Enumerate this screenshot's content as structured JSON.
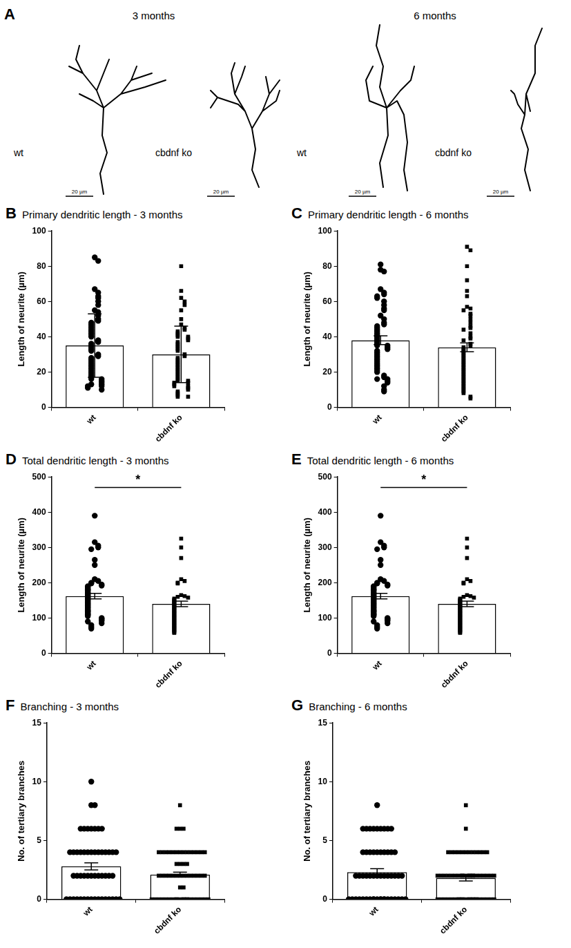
{
  "panel_a": {
    "letter": "A",
    "groups": [
      {
        "title": "3 months",
        "cells": [
          {
            "label": "wt",
            "scale_bar": "20 µm"
          },
          {
            "label": "cbdnf ko",
            "scale_bar": "20 µm"
          }
        ]
      },
      {
        "title": "6 months",
        "cells": [
          {
            "label": "wt",
            "scale_bar": "20 µm"
          },
          {
            "label": "cbdnf ko",
            "scale_bar": "20 µm"
          }
        ]
      }
    ]
  },
  "chart_data": [
    {
      "type": "bar",
      "panel": "B",
      "title": "Primary dendritic length - 3 months",
      "y_label": "Length of neurite (µm)",
      "categories": [
        "wt",
        "cbdnf ko"
      ],
      "values": [
        35,
        30
      ],
      "errors": [
        18,
        16
      ],
      "color": "#000000",
      "points": [
        {
          "marker": "circle",
          "values": [
            85,
            83,
            67,
            65,
            63,
            62,
            60,
            58,
            55,
            54,
            52,
            50,
            49,
            48,
            47,
            46,
            45,
            44,
            43,
            42,
            41,
            40,
            38,
            37,
            36,
            35,
            34,
            33,
            32,
            30,
            29,
            28,
            27,
            26,
            25,
            24,
            23,
            22,
            21,
            20,
            19,
            18,
            17,
            16,
            16,
            15,
            14,
            13,
            13,
            12,
            12,
            11,
            10
          ]
        },
        {
          "marker": "square",
          "values": [
            80,
            66,
            62,
            60,
            58,
            55,
            50,
            47,
            45,
            44,
            43,
            42,
            41,
            40,
            40,
            39,
            38,
            37,
            36,
            35,
            34,
            33,
            32,
            30,
            29,
            28,
            27,
            26,
            25,
            24,
            23,
            22,
            21,
            20,
            19,
            18,
            17,
            16,
            15,
            15,
            14,
            14,
            13,
            12,
            12,
            11,
            10,
            9,
            8,
            7,
            6,
            6
          ]
        }
      ],
      "ylim": [
        0,
        100
      ],
      "yticks": [
        0,
        20,
        40,
        60,
        80,
        100
      ],
      "grid": false
    },
    {
      "type": "bar",
      "panel": "C",
      "title": "Primary dendritic length - 6 months",
      "y_label": "Length of neurite (µm)",
      "categories": [
        "wt",
        "cbdnf ko"
      ],
      "values": [
        38,
        34
      ],
      "errors": [
        2.5,
        2.5
      ],
      "color": "#000000",
      "points": [
        {
          "marker": "circle",
          "values": [
            81,
            78,
            77,
            67,
            65,
            64,
            63,
            62,
            60,
            58,
            56,
            55,
            52,
            50,
            48,
            47,
            46,
            45,
            44,
            43,
            42,
            41,
            40,
            39,
            38,
            37,
            36,
            35,
            35,
            34,
            33,
            32,
            31,
            30,
            29,
            28,
            27,
            26,
            25,
            24,
            23,
            22,
            21,
            20,
            18,
            17,
            16,
            16,
            15,
            14,
            12,
            10,
            9
          ]
        },
        {
          "marker": "square",
          "values": [
            91,
            89,
            80,
            72,
            66,
            63,
            57,
            56,
            55,
            53,
            52,
            50,
            48,
            46,
            45,
            44,
            42,
            40,
            39,
            38,
            36,
            35,
            34,
            33,
            32,
            31,
            30,
            29,
            28,
            27,
            26,
            25,
            24,
            23,
            22,
            21,
            20,
            19,
            18,
            17,
            16,
            15,
            14,
            13,
            12,
            11,
            10,
            9,
            8,
            6,
            5
          ]
        }
      ],
      "ylim": [
        0,
        100
      ],
      "yticks": [
        0,
        20,
        40,
        60,
        80,
        100
      ],
      "grid": false
    },
    {
      "type": "bar",
      "panel": "D",
      "title": "Total dendritic length - 3 months",
      "y_label": "Length of neurite (µm)",
      "categories": [
        "wt",
        "cbdnf ko"
      ],
      "values": [
        162,
        140
      ],
      "errors": [
        8,
        8
      ],
      "color": "#000000",
      "points": [
        {
          "marker": "circle",
          "values": [
            390,
            315,
            305,
            300,
            295,
            265,
            250,
            210,
            205,
            200,
            198,
            195,
            192,
            190,
            188,
            185,
            182,
            180,
            178,
            175,
            172,
            170,
            168,
            165,
            162,
            160,
            158,
            155,
            152,
            150,
            148,
            145,
            142,
            140,
            138,
            135,
            132,
            130,
            128,
            125,
            122,
            120,
            118,
            115,
            112,
            110,
            108,
            105,
            100,
            98,
            95,
            92,
            90,
            85,
            80,
            75,
            70
          ]
        },
        {
          "marker": "square",
          "values": [
            325,
            300,
            270,
            210,
            205,
            200,
            198,
            165,
            162,
            160,
            158,
            155,
            152,
            150,
            148,
            145,
            142,
            140,
            138,
            135,
            132,
            130,
            128,
            125,
            122,
            120,
            118,
            115,
            112,
            110,
            108,
            105,
            102,
            100,
            98,
            95,
            92,
            90,
            88,
            85,
            82,
            80,
            78,
            75,
            72,
            70,
            68,
            65,
            62,
            60,
            58
          ]
        }
      ],
      "annotations": [
        {
          "text": "*",
          "from": "wt",
          "to": "cbdnf ko"
        }
      ],
      "ylim": [
        0,
        500
      ],
      "yticks": [
        0,
        100,
        200,
        300,
        400,
        500
      ],
      "grid": false
    },
    {
      "type": "bar",
      "panel": "E",
      "title": "Total dendritic length - 6 months",
      "y_label": "Length of neurite (µm)",
      "categories": [
        "wt",
        "cbdnf ko"
      ],
      "values": [
        162,
        140
      ],
      "errors": [
        8,
        8
      ],
      "color": "#000000",
      "points": [
        {
          "marker": "circle",
          "values": [
            390,
            315,
            305,
            300,
            295,
            265,
            250,
            210,
            205,
            200,
            198,
            195,
            192,
            190,
            188,
            185,
            182,
            180,
            178,
            175,
            172,
            170,
            168,
            165,
            162,
            160,
            158,
            155,
            152,
            150,
            148,
            145,
            142,
            140,
            138,
            135,
            132,
            130,
            128,
            125,
            122,
            120,
            118,
            115,
            112,
            110,
            108,
            105,
            100,
            98,
            95,
            92,
            90,
            85,
            80,
            75,
            70
          ]
        },
        {
          "marker": "square",
          "values": [
            325,
            300,
            270,
            210,
            205,
            200,
            198,
            165,
            162,
            160,
            158,
            155,
            152,
            150,
            148,
            145,
            142,
            140,
            138,
            135,
            132,
            130,
            128,
            125,
            122,
            120,
            118,
            115,
            112,
            110,
            108,
            105,
            102,
            100,
            98,
            95,
            92,
            90,
            88,
            85,
            82,
            80,
            78,
            75,
            72,
            70,
            68,
            65,
            62,
            60,
            58
          ]
        }
      ],
      "annotations": [
        {
          "text": "*",
          "from": "wt",
          "to": "cbdnf ko"
        }
      ],
      "ylim": [
        0,
        500
      ],
      "yticks": [
        0,
        100,
        200,
        300,
        400,
        500
      ],
      "grid": false
    },
    {
      "type": "bar",
      "panel": "F",
      "title": "Branching - 3 months",
      "y_label": "No. of tertiary branches",
      "categories": [
        "wt",
        "cbdnf ko"
      ],
      "values": [
        2.8,
        2.1
      ],
      "errors": [
        0.3,
        0.2
      ],
      "color": "#000000",
      "points": [
        {
          "marker": "circle",
          "values": [
            10,
            8,
            8,
            6,
            6,
            6,
            6,
            6,
            6,
            6,
            4,
            4,
            4,
            4,
            4,
            4,
            4,
            4,
            4,
            4,
            4,
            4,
            4,
            4,
            2,
            2,
            2,
            2,
            2,
            2,
            2,
            2,
            2,
            2,
            2,
            2,
            0,
            0,
            0,
            0,
            0,
            0,
            0,
            0,
            0,
            0,
            0,
            0,
            0,
            0,
            0,
            0
          ]
        },
        {
          "marker": "square",
          "values": [
            8,
            6,
            6,
            6,
            4,
            4,
            4,
            4,
            4,
            4,
            4,
            4,
            4,
            4,
            4,
            4,
            4,
            4,
            3,
            3,
            3,
            3,
            2,
            2,
            2,
            2,
            2,
            2,
            2,
            2,
            2,
            2,
            2,
            2,
            2,
            2,
            1,
            1,
            0,
            0,
            0,
            0,
            0,
            0,
            0,
            0,
            0,
            0,
            0,
            0,
            0,
            0,
            0,
            0,
            0,
            0,
            0,
            0
          ]
        }
      ],
      "ylim": [
        0,
        15
      ],
      "yticks": [
        0,
        5,
        10,
        15
      ],
      "grid": false
    },
    {
      "type": "bar",
      "panel": "G",
      "title": "Branching - 6 months",
      "y_label": "No. of tertiary branches",
      "categories": [
        "wt",
        "cbdnf ko"
      ],
      "values": [
        2.3,
        1.8
      ],
      "errors": [
        0.3,
        0.25
      ],
      "color": "#000000",
      "points": [
        {
          "marker": "circle",
          "values": [
            8,
            6,
            6,
            6,
            6,
            6,
            6,
            6,
            6,
            6,
            4,
            4,
            4,
            4,
            4,
            4,
            4,
            4,
            4,
            4,
            2,
            2,
            2,
            2,
            2,
            2,
            2,
            2,
            2,
            2,
            2,
            2,
            2,
            2,
            0,
            0,
            0,
            0,
            0,
            0,
            0,
            0,
            0,
            0,
            0,
            0,
            0,
            0,
            0,
            0,
            0,
            0,
            0,
            0
          ]
        },
        {
          "marker": "square",
          "values": [
            8,
            6,
            4,
            4,
            4,
            4,
            4,
            4,
            4,
            4,
            4,
            4,
            4,
            4,
            2,
            2,
            2,
            2,
            2,
            2,
            2,
            2,
            2,
            2,
            2,
            2,
            2,
            2,
            2,
            2,
            2,
            2,
            2,
            2,
            0,
            0,
            0,
            0,
            0,
            0,
            0,
            0,
            0,
            0,
            0,
            0,
            0,
            0,
            0,
            0,
            0,
            0,
            0,
            0,
            0,
            0
          ]
        }
      ],
      "ylim": [
        0,
        15
      ],
      "yticks": [
        0,
        5,
        10,
        15
      ],
      "grid": false
    }
  ]
}
